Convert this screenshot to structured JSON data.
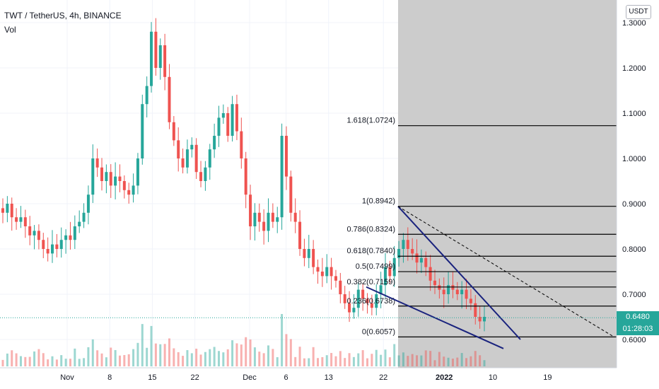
{
  "chart_data": {
    "type": "candlestick",
    "title": "TWT / TetherUS, 4h, BINANCE",
    "volume_label": "Vol",
    "unit_label": "USDT",
    "ylim": [
      0.52,
      1.33
    ],
    "y_ticks": [
      "1.3000",
      "1.2000",
      "1.1000",
      "1.0000",
      "0.9000",
      "0.8000",
      "0.7000",
      "0.6000"
    ],
    "y_tick_values": [
      1.3,
      1.2,
      1.1,
      1.0,
      0.9,
      0.8,
      0.7,
      0.6
    ],
    "x_ticks": [
      "Nov",
      "8",
      "15",
      "22",
      "Dec",
      "6",
      "13",
      "22",
      "2022",
      "10",
      "19"
    ],
    "x_tick_days": [
      -2,
      5,
      12,
      19,
      28,
      34,
      41,
      50,
      60,
      68,
      77
    ],
    "last_price": "0.6480",
    "last_price_value": 0.648,
    "countdown": "01:28:03",
    "closes": [
      0.88,
      0.9,
      0.87,
      0.86,
      0.87,
      0.85,
      0.83,
      0.84,
      0.82,
      0.8,
      0.79,
      0.81,
      0.8,
      0.82,
      0.83,
      0.82,
      0.85,
      0.86,
      0.88,
      0.92,
      1.0,
      0.98,
      0.95,
      0.97,
      0.94,
      0.96,
      0.95,
      0.93,
      0.92,
      0.94,
      1.0,
      1.12,
      1.16,
      1.28,
      1.2,
      1.25,
      1.18,
      1.08,
      1.04,
      1.0,
      0.98,
      1.02,
      1.03,
      0.97,
      0.95,
      0.98,
      1.02,
      1.05,
      1.09,
      1.1,
      1.05,
      1.12,
      1.06,
      1.0,
      0.92,
      0.85,
      0.88,
      0.86,
      0.84,
      0.88,
      0.86,
      0.87,
      1.05,
      0.96,
      0.88,
      0.86,
      0.8,
      0.78,
      0.8,
      0.76,
      0.75,
      0.74,
      0.76,
      0.74,
      0.73,
      0.7,
      0.68,
      0.66,
      0.67,
      0.71,
      0.69,
      0.68,
      0.67,
      0.7,
      0.72,
      0.76,
      0.74,
      0.78,
      0.8,
      0.82,
      0.8,
      0.79,
      0.77,
      0.78,
      0.76,
      0.73,
      0.72,
      0.71,
      0.7,
      0.72,
      0.71,
      0.7,
      0.71,
      0.69,
      0.68,
      0.65,
      0.64,
      0.65
    ],
    "fib_levels": [
      {
        "label": "1.618(1.0724)",
        "value": 1.0724
      },
      {
        "label": "1(0.8942)",
        "value": 0.8942
      },
      {
        "label": "0.786(0.8324)",
        "value": 0.8324
      },
      {
        "label": "0.618(0.7840)",
        "value": 0.784
      },
      {
        "label": "0.5(0.7499)",
        "value": 0.7499
      },
      {
        "label": "0.382(0.7159)",
        "value": 0.7159
      },
      {
        "label": "0.236(0.6738)",
        "value": 0.6738
      },
      {
        "label": "0(0.6057)",
        "value": 0.6057
      }
    ],
    "colors": {
      "up": "#26a69a",
      "down": "#ef5350",
      "wedge": "#1a237e",
      "shade": "#cccccc",
      "fib": "#000000",
      "last": "#26a69a"
    }
  }
}
